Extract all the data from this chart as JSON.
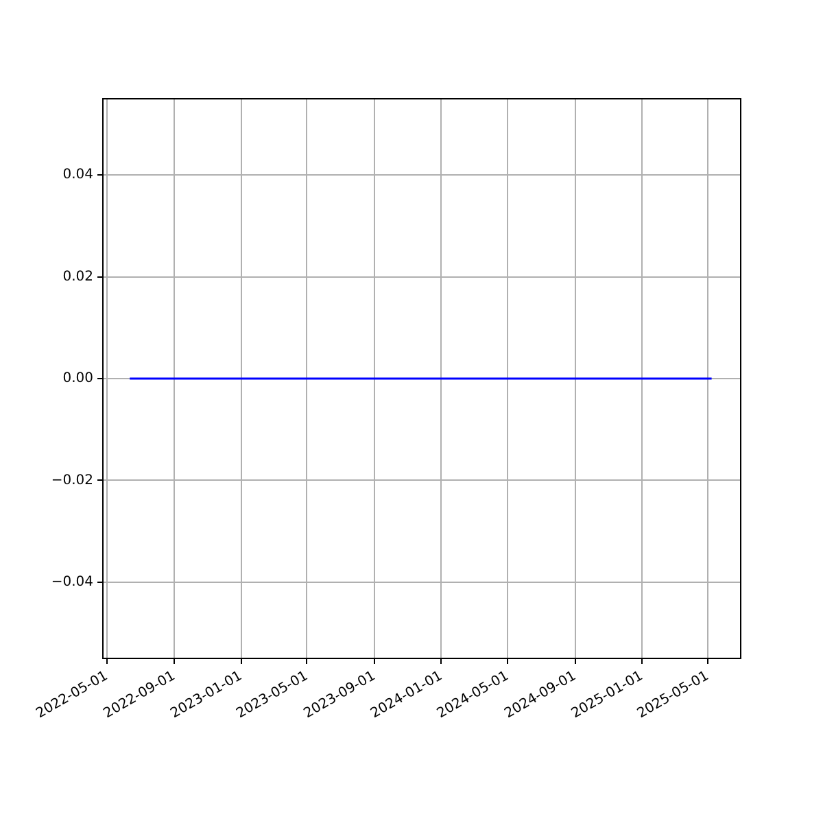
{
  "chart_data": {
    "type": "line",
    "x": [
      "2022-06-12",
      "2025-05-08"
    ],
    "series": [
      {
        "color": "#0000ff",
        "values": [
          0,
          0
        ]
      }
    ],
    "xlim": [
      "2022-04-24",
      "2025-06-30"
    ],
    "xticks": [
      "2022-05-01",
      "2022-09-01",
      "2023-01-01",
      "2023-05-01",
      "2023-09-01",
      "2024-01-01",
      "2024-05-01",
      "2024-09-01",
      "2025-01-01",
      "2025-05-01"
    ],
    "ylim": [
      -0.055,
      0.055
    ],
    "yticks": [
      {
        "value": -0.04,
        "label": "−0.04"
      },
      {
        "value": -0.02,
        "label": "−0.02"
      },
      {
        "value": 0,
        "label": "0.00"
      },
      0.02,
      0.04
    ],
    "grid": true,
    "legend": false,
    "marker": "none",
    "line_style": "solid"
  }
}
